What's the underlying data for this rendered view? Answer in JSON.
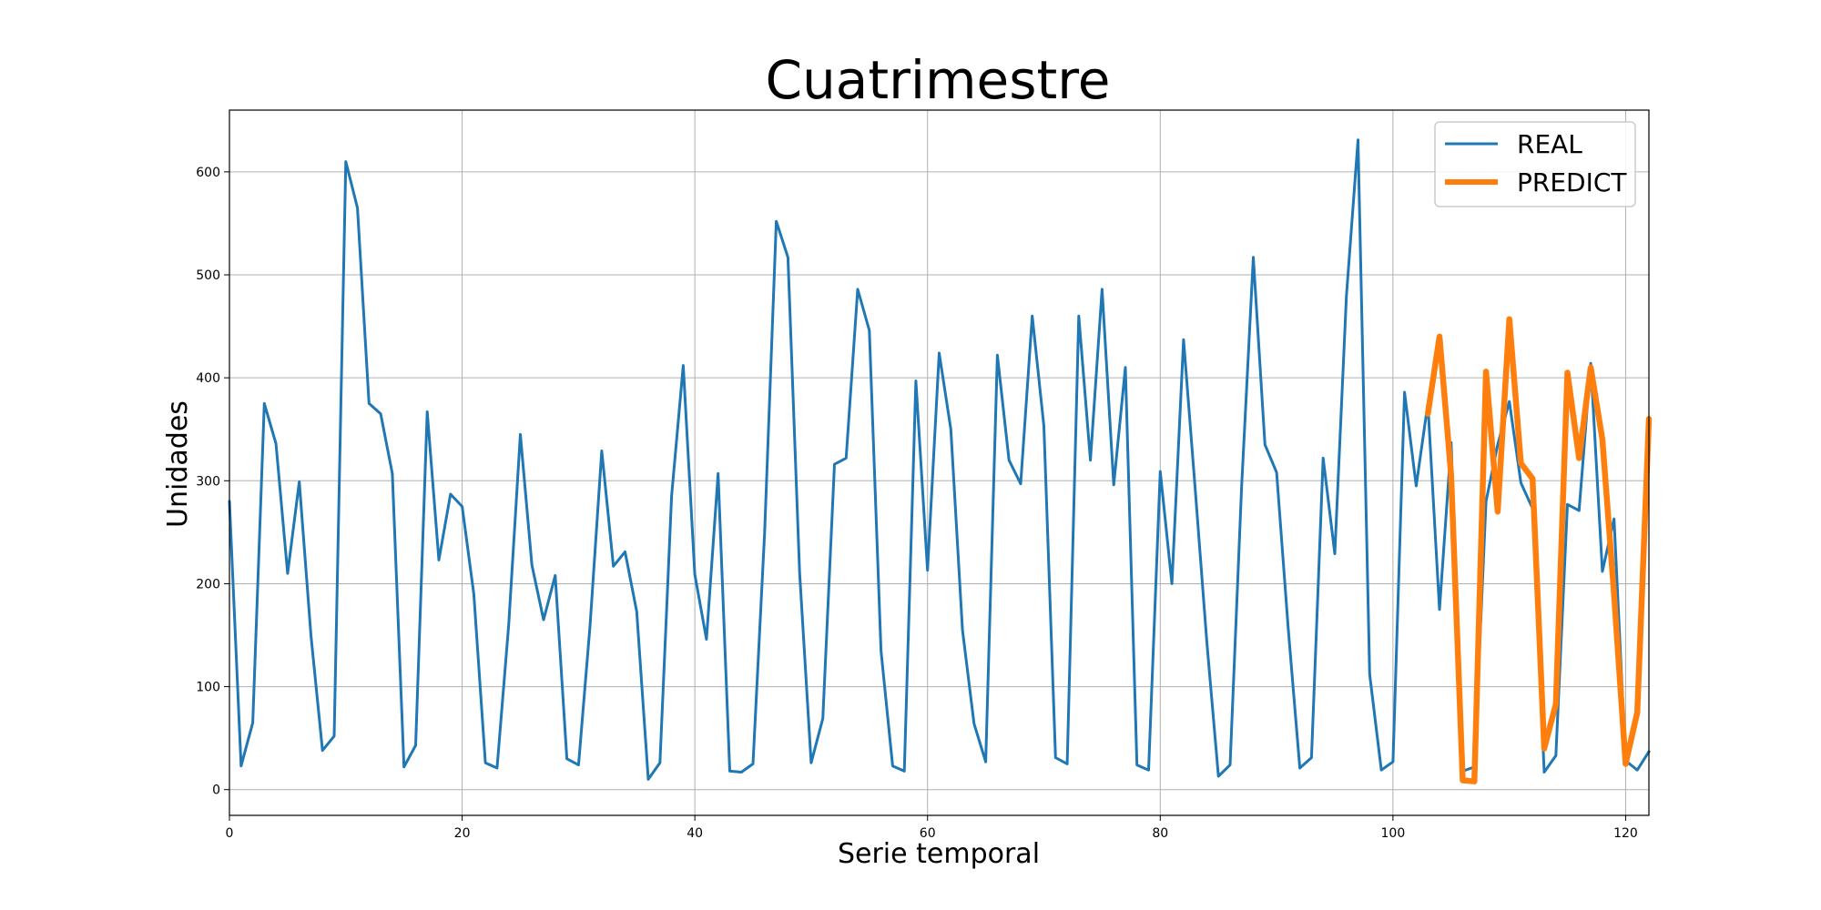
{
  "chart_data": {
    "type": "line",
    "title": "Cuatrimestre",
    "xlabel": "Serie temporal",
    "ylabel": "Unidades",
    "xlim": [
      0,
      122
    ],
    "ylim": [
      -25,
      660
    ],
    "xticks": [
      0,
      20,
      40,
      60,
      80,
      100,
      120
    ],
    "yticks": [
      0,
      100,
      200,
      300,
      400,
      500,
      600
    ],
    "grid": true,
    "legend_position": "top-right",
    "series": [
      {
        "name": "REAL",
        "color": "#1f77b4",
        "x": [
          0,
          1,
          2,
          3,
          4,
          5,
          6,
          7,
          8,
          9,
          10,
          11,
          12,
          13,
          14,
          15,
          16,
          17,
          18,
          19,
          20,
          21,
          22,
          23,
          24,
          25,
          26,
          27,
          28,
          29,
          30,
          31,
          32,
          33,
          34,
          35,
          36,
          37,
          38,
          39,
          40,
          41,
          42,
          43,
          44,
          45,
          46,
          47,
          48,
          49,
          50,
          51,
          52,
          53,
          54,
          55,
          56,
          57,
          58,
          59,
          60,
          61,
          62,
          63,
          64,
          65,
          66,
          67,
          68,
          69,
          70,
          71,
          72,
          73,
          74,
          75,
          76,
          77,
          78,
          79,
          80,
          81,
          82,
          83,
          84,
          85,
          86,
          87,
          88,
          89,
          90,
          91,
          92,
          93,
          94,
          95,
          96,
          97,
          98,
          99,
          100,
          101,
          102,
          103,
          104,
          105,
          106,
          107,
          108,
          109,
          110,
          111,
          112,
          113,
          114,
          115,
          116,
          117,
          118,
          119,
          120,
          121,
          122
        ],
        "values": [
          280,
          23,
          65,
          375,
          336,
          210,
          299,
          150,
          38,
          52,
          610,
          565,
          375,
          365,
          307,
          22,
          43,
          367,
          223,
          287,
          275,
          190,
          26,
          21,
          160,
          345,
          218,
          165,
          208,
          30,
          24,
          160,
          329,
          217,
          231,
          173,
          10,
          26,
          285,
          412,
          209,
          146,
          307,
          18,
          17,
          25,
          250,
          552,
          517,
          211,
          26,
          69,
          316,
          322,
          486,
          446,
          135,
          23,
          18,
          397,
          213,
          424,
          350,
          155,
          64,
          27,
          422,
          320,
          297,
          460,
          353,
          31,
          25,
          460,
          320,
          486,
          296,
          410,
          24,
          19,
          309,
          200,
          437,
          293,
          144,
          13,
          24,
          295,
          517,
          335,
          308,
          156,
          21,
          31,
          322,
          229,
          480,
          631,
          112,
          19,
          27,
          386,
          295,
          375,
          175,
          337,
          18,
          22,
          280,
          335,
          377,
          298,
          273,
          17,
          33,
          277,
          271,
          414,
          212,
          263,
          28,
          19,
          37
        ]
      },
      {
        "name": "PREDICT",
        "color": "#ff7f0e",
        "x": [
          103,
          104,
          105,
          106,
          107,
          108,
          109,
          110,
          111,
          112,
          113,
          114,
          115,
          116,
          117,
          118,
          119,
          120,
          121,
          122
        ],
        "values": [
          365,
          440,
          305,
          9,
          8,
          406,
          270,
          457,
          317,
          302,
          40,
          83,
          405,
          322,
          410,
          340,
          190,
          25,
          75,
          360
        ]
      }
    ]
  }
}
